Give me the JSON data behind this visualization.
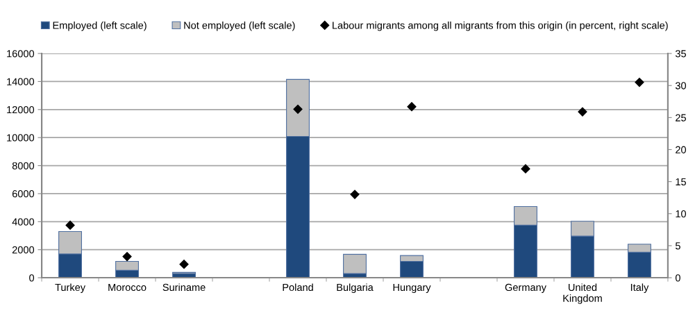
{
  "chart_data": {
    "type": "bar",
    "stacked": true,
    "categories": [
      "Turkey",
      "Morocco",
      "Suriname",
      null,
      "Poland",
      "Bulgaria",
      "Hungary",
      null,
      "Germany",
      "United\nKingdom",
      "Italy"
    ],
    "series": [
      {
        "name": "Employed (left scale)",
        "color": "#1f497d",
        "values": [
          1700,
          530,
          300,
          null,
          10080,
          300,
          1170,
          null,
          3750,
          2970,
          1820
        ]
      },
      {
        "name": "Not employed (left scale)",
        "color": "#bfbfbf",
        "values": [
          1600,
          640,
          80,
          null,
          4070,
          1370,
          410,
          null,
          1330,
          1060,
          570
        ]
      },
      {
        "name": "Labour migrants among all migrants from this origin (in percent, right scale)",
        "type": "scatter",
        "axis": "y2",
        "marker": "diamond",
        "color": "#000000",
        "values": [
          8.2,
          3.3,
          2.1,
          null,
          26.3,
          13.0,
          26.7,
          null,
          17.0,
          25.9,
          30.5
        ]
      }
    ],
    "ylim": [
      0,
      16000
    ],
    "yticks": [
      0,
      2000,
      4000,
      6000,
      8000,
      10000,
      12000,
      14000,
      16000
    ],
    "y2lim": [
      0,
      35
    ],
    "y2ticks": [
      0,
      5,
      10,
      15,
      20,
      25,
      30,
      35
    ],
    "grid": "y",
    "legend": "top"
  }
}
